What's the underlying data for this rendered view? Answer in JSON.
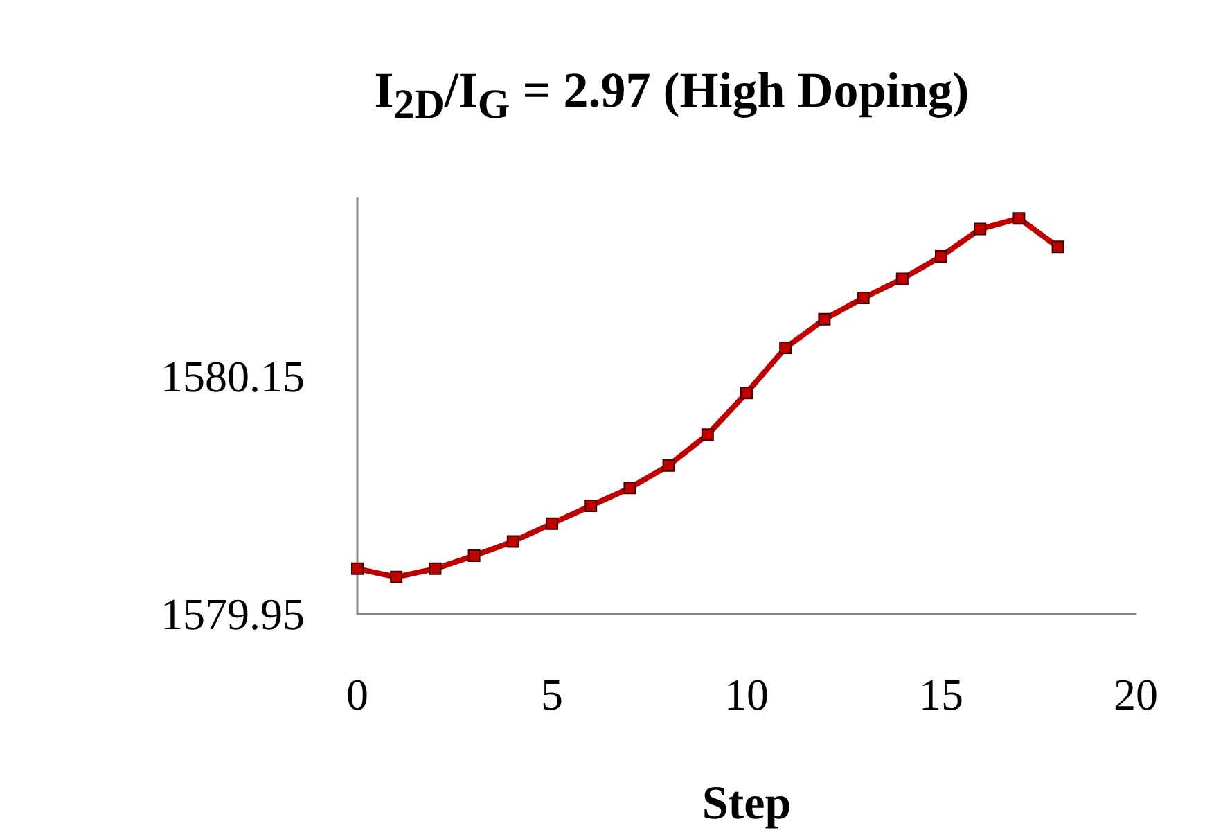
{
  "chart_data": {
    "type": "line",
    "title": "I$_{2D}$/I$_{G}$ = 2.97 (High Doping)",
    "xlabel": "Step",
    "x": [
      0,
      1,
      2,
      3,
      4,
      5,
      6,
      7,
      8,
      9,
      10,
      11,
      12,
      13,
      14,
      15,
      16,
      17,
      18
    ],
    "series": [
      {
        "color": "#c00000",
        "values": [
          1579.988,
          1579.981,
          1579.988,
          1579.999,
          1580.011,
          1580.026,
          1580.041,
          1580.056,
          1580.075,
          1580.101,
          1580.136,
          1580.174,
          1580.198,
          1580.216,
          1580.232,
          1580.251,
          1580.274,
          1580.283,
          1580.259
        ]
      }
    ],
    "xlim": [
      0,
      20
    ],
    "xticks": [
      0,
      5,
      10,
      15,
      20
    ],
    "ylim": [
      1579.95,
      1580.3
    ],
    "yticks": [
      1579.95,
      1580.15
    ],
    "marker": "square"
  }
}
